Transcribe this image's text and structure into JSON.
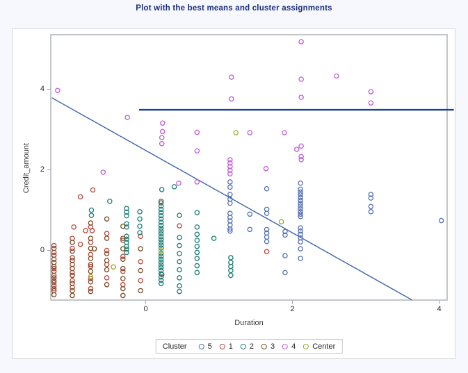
{
  "title": "Plot with the best means and cluster assignments",
  "chart_data": {
    "type": "scatter",
    "title": "Plot with the best means and cluster assignments",
    "xlabel": "Duration",
    "ylabel": "Credit_amount",
    "x_ticks": [
      0,
      2,
      4
    ],
    "y_ticks": [
      0,
      2,
      4
    ],
    "x_range": [
      -1.29,
      4.11
    ],
    "y_range": [
      -1.23,
      5.35
    ],
    "grid": false,
    "legend_position": "bottom",
    "legend_title": "Cluster",
    "marker": "open-circle",
    "series": [
      {
        "name": "5",
        "color": "#5873b5",
        "points": [
          [
            1.15,
            1.7
          ],
          [
            1.15,
            1.57
          ],
          [
            1.15,
            1.39
          ],
          [
            1.15,
            1.27
          ],
          [
            1.15,
            1.17
          ],
          [
            1.15,
            0.92
          ],
          [
            1.15,
            0.82
          ],
          [
            1.15,
            0.73
          ],
          [
            1.15,
            0.63
          ],
          [
            1.15,
            0.53
          ],
          [
            1.15,
            0.48
          ],
          [
            1.42,
            0.9
          ],
          [
            1.42,
            0.52
          ],
          [
            1.65,
            1.53
          ],
          [
            1.65,
            1.02
          ],
          [
            1.65,
            0.92
          ],
          [
            1.65,
            0.52
          ],
          [
            1.65,
            0.43
          ],
          [
            1.65,
            0.33
          ],
          [
            1.65,
            0.22
          ],
          [
            1.9,
            0.47
          ],
          [
            1.9,
            0.38
          ],
          [
            1.9,
            -0.13
          ],
          [
            1.9,
            -0.55
          ],
          [
            2.11,
            1.67
          ],
          [
            2.11,
            1.52
          ],
          [
            2.11,
            1.45
          ],
          [
            2.11,
            1.38
          ],
          [
            2.11,
            1.31
          ],
          [
            2.11,
            1.24
          ],
          [
            2.11,
            1.17
          ],
          [
            2.11,
            1.1
          ],
          [
            2.11,
            1.03
          ],
          [
            2.11,
            0.96
          ],
          [
            2.11,
            0.9
          ],
          [
            2.11,
            0.84
          ],
          [
            2.11,
            0.56
          ],
          [
            2.11,
            0.48
          ],
          [
            2.11,
            0.4
          ],
          [
            2.11,
            0.31
          ],
          [
            2.11,
            0.21
          ],
          [
            2.11,
            0.04
          ],
          [
            2.11,
            -0.2
          ],
          [
            3.07,
            1.39
          ],
          [
            3.07,
            1.3
          ],
          [
            3.07,
            1.09
          ],
          [
            3.07,
            0.96
          ],
          [
            4.03,
            0.74
          ]
        ]
      },
      {
        "name": "1",
        "color": "#bf473d",
        "points": [
          [
            -0.72,
            1.5
          ],
          [
            -0.89,
            1.33
          ],
          [
            -0.98,
            0.58
          ],
          [
            -0.82,
            0.49
          ],
          [
            -0.73,
            0.49
          ],
          [
            -0.89,
            0.15
          ],
          [
            0.21,
            1.18
          ],
          [
            0.46,
            0.61
          ],
          [
            1.65,
            -0.03
          ],
          [
            0.22,
            -0.6
          ],
          [
            -1.25,
            0.12
          ],
          [
            -1.25,
            -0.05
          ],
          [
            -1.25,
            -0.22
          ],
          [
            -1.25,
            -0.45
          ],
          [
            -1.25,
            -0.62
          ],
          [
            -1.25,
            -0.8
          ],
          [
            -1.25,
            -0.95
          ],
          [
            -1.0,
            0.3
          ],
          [
            -1.0,
            0.05
          ],
          [
            -1.0,
            -0.18
          ],
          [
            -1.0,
            -0.35
          ],
          [
            -1.0,
            -0.55
          ],
          [
            -1.0,
            -0.75
          ],
          [
            -1.0,
            -0.92
          ],
          [
            -0.75,
            0.58
          ],
          [
            -0.75,
            0.2
          ],
          [
            -0.75,
            -0.1
          ],
          [
            -0.75,
            -0.4
          ],
          [
            -0.75,
            -0.7
          ],
          [
            -0.75,
            -0.95
          ],
          [
            -0.53,
            0.42
          ],
          [
            -0.53,
            0.0
          ],
          [
            -0.53,
            -0.35
          ],
          [
            -0.53,
            -0.68
          ],
          [
            -0.31,
            0.25
          ],
          [
            -0.31,
            -0.15
          ],
          [
            -0.31,
            -0.52
          ],
          [
            -0.31,
            -0.85
          ],
          [
            -0.07,
            0.35
          ],
          [
            -0.07,
            -0.28
          ],
          [
            -0.07,
            -0.75
          ]
        ]
      },
      {
        "name": "2",
        "color": "#1d8177",
        "points": [
          [
            -0.74,
            1.0
          ],
          [
            -0.74,
            0.87
          ],
          [
            -0.49,
            1.22
          ],
          [
            -0.26,
            1.04
          ],
          [
            -0.26,
            0.95
          ],
          [
            -0.26,
            0.86
          ],
          [
            -0.26,
            0.66
          ],
          [
            -0.26,
            0.58
          ],
          [
            -0.26,
            0.35
          ],
          [
            -0.26,
            0.28
          ],
          [
            -0.26,
            0.2
          ],
          [
            -0.26,
            0.1
          ],
          [
            -0.26,
            0.03
          ],
          [
            -0.26,
            -0.05
          ],
          [
            -0.08,
            0.96
          ],
          [
            -0.08,
            0.78
          ],
          [
            -0.08,
            0.6
          ],
          [
            -0.08,
            0.44
          ],
          [
            0.39,
            1.58
          ],
          [
            0.22,
            1.51
          ],
          [
            0.21,
            1.22
          ],
          [
            0.21,
            1.1
          ],
          [
            0.21,
            1.02
          ],
          [
            0.21,
            0.94
          ],
          [
            0.21,
            0.86
          ],
          [
            0.21,
            0.78
          ],
          [
            0.21,
            0.7
          ],
          [
            0.21,
            0.62
          ],
          [
            0.21,
            0.55
          ],
          [
            0.21,
            0.48
          ],
          [
            0.21,
            0.41
          ],
          [
            0.21,
            0.34
          ],
          [
            0.21,
            0.27
          ],
          [
            0.21,
            0.2
          ],
          [
            0.21,
            0.13
          ],
          [
            0.21,
            0.06
          ],
          [
            0.21,
            -0.08
          ],
          [
            0.21,
            -0.15
          ],
          [
            0.21,
            -0.22
          ],
          [
            0.21,
            -0.29
          ],
          [
            0.21,
            -0.36
          ],
          [
            0.21,
            -0.43
          ],
          [
            0.21,
            -0.5
          ],
          [
            0.21,
            -0.58
          ],
          [
            0.21,
            -0.66
          ],
          [
            0.21,
            -0.74
          ],
          [
            0.21,
            -0.82
          ],
          [
            0.46,
            0.87
          ],
          [
            0.46,
            0.32
          ],
          [
            0.46,
            0.12
          ],
          [
            0.46,
            -0.08
          ],
          [
            0.46,
            -0.28
          ],
          [
            0.46,
            -0.48
          ],
          [
            0.46,
            -0.68
          ],
          [
            0.46,
            -0.88
          ],
          [
            0.46,
            -1.02
          ],
          [
            0.7,
            0.94
          ],
          [
            0.7,
            0.58
          ],
          [
            0.7,
            0.4
          ],
          [
            0.7,
            0.25
          ],
          [
            0.7,
            0.1
          ],
          [
            0.7,
            -0.05
          ],
          [
            0.7,
            -0.2
          ],
          [
            0.7,
            -0.38
          ],
          [
            0.7,
            -0.55
          ],
          [
            0.93,
            0.3
          ],
          [
            1.16,
            -0.18
          ],
          [
            1.16,
            -0.3
          ],
          [
            1.16,
            -0.4
          ],
          [
            1.16,
            -0.5
          ],
          [
            1.16,
            -0.62
          ]
        ]
      },
      {
        "name": "3",
        "color": "#7d4e28",
        "points": [
          [
            -1.25,
            0.05
          ],
          [
            -1.25,
            -0.12
          ],
          [
            -1.25,
            -0.3
          ],
          [
            -1.25,
            -0.4
          ],
          [
            -1.25,
            -0.52
          ],
          [
            -1.25,
            -0.68
          ],
          [
            -1.25,
            -0.75
          ],
          [
            -1.25,
            -0.88
          ],
          [
            -1.25,
            -1.0
          ],
          [
            -1.25,
            -1.1
          ],
          [
            -1.0,
            0.2
          ],
          [
            -1.0,
            -0.02
          ],
          [
            -1.0,
            -0.25
          ],
          [
            -1.0,
            -0.45
          ],
          [
            -1.0,
            -0.62
          ],
          [
            -1.0,
            -0.82
          ],
          [
            -1.0,
            -1.0
          ],
          [
            -1.0,
            -1.12
          ],
          [
            -0.75,
            0.68
          ],
          [
            -0.75,
            0.3
          ],
          [
            -0.75,
            0.05
          ],
          [
            -0.75,
            -0.2
          ],
          [
            -0.75,
            -0.35
          ],
          [
            -0.75,
            -0.52
          ],
          [
            -0.75,
            -0.78
          ],
          [
            -0.75,
            -1.02
          ],
          [
            -0.53,
            0.78
          ],
          [
            -0.53,
            0.3
          ],
          [
            -0.53,
            -0.08
          ],
          [
            -0.53,
            -0.25
          ],
          [
            -0.53,
            -0.48
          ],
          [
            -0.53,
            -0.85
          ],
          [
            -0.31,
            0.6
          ],
          [
            -0.31,
            0.3
          ],
          [
            -0.31,
            0.04
          ],
          [
            -0.31,
            -0.22
          ],
          [
            -0.31,
            -0.45
          ],
          [
            -0.31,
            -0.7
          ],
          [
            -0.31,
            -0.95
          ],
          [
            -0.31,
            -1.12
          ],
          [
            -0.7,
            0.04
          ],
          [
            -0.07,
            0.04
          ],
          [
            -0.07,
            -0.5
          ],
          [
            -0.07,
            -1.0
          ]
        ]
      },
      {
        "name": "4",
        "color": "#c25fd8",
        "points": [
          [
            -1.2,
            3.97
          ],
          [
            -0.25,
            3.3
          ],
          [
            0.23,
            3.16
          ],
          [
            0.23,
            2.95
          ],
          [
            0.7,
            2.93
          ],
          [
            1.42,
            2.92
          ],
          [
            1.89,
            2.92
          ],
          [
            0.22,
            2.8
          ],
          [
            0.22,
            2.65
          ],
          [
            0.7,
            2.47
          ],
          [
            -0.58,
            1.94
          ],
          [
            0.45,
            1.67
          ],
          [
            0.7,
            1.7
          ],
          [
            1.15,
            2.25
          ],
          [
            1.15,
            2.17
          ],
          [
            1.15,
            2.08
          ],
          [
            1.15,
            1.99
          ],
          [
            1.15,
            1.9
          ],
          [
            1.64,
            2.03
          ],
          [
            2.06,
            2.51
          ],
          [
            2.12,
            2.59
          ],
          [
            2.12,
            2.33
          ],
          [
            2.12,
            2.25
          ],
          [
            2.12,
            5.18
          ],
          [
            2.12,
            4.25
          ],
          [
            2.12,
            3.8
          ],
          [
            2.6,
            4.33
          ],
          [
            3.07,
            3.94
          ],
          [
            3.07,
            3.66
          ],
          [
            1.17,
            4.3
          ],
          [
            1.17,
            3.76
          ]
        ]
      },
      {
        "name": "Center",
        "color": "#a0a832",
        "points": [
          [
            -0.75,
            -0.65
          ],
          [
            -0.44,
            -0.41
          ],
          [
            0.21,
            -0.01
          ],
          [
            1.85,
            0.71
          ],
          [
            1.23,
            2.92
          ]
        ]
      }
    ],
    "lines": [
      {
        "name": "best-means-horizontal-line",
        "type": "horizontal",
        "y": 3.49,
        "x_start": -0.09,
        "x_end": 4.2,
        "color": "#16409a",
        "width": 2.4
      },
      {
        "name": "separating-diagonal-line",
        "type": "segment",
        "from": [
          -1.28,
          3.79
        ],
        "to": [
          3.63,
          -1.23
        ],
        "color": "#3c64b0",
        "width": 1.4
      }
    ]
  }
}
